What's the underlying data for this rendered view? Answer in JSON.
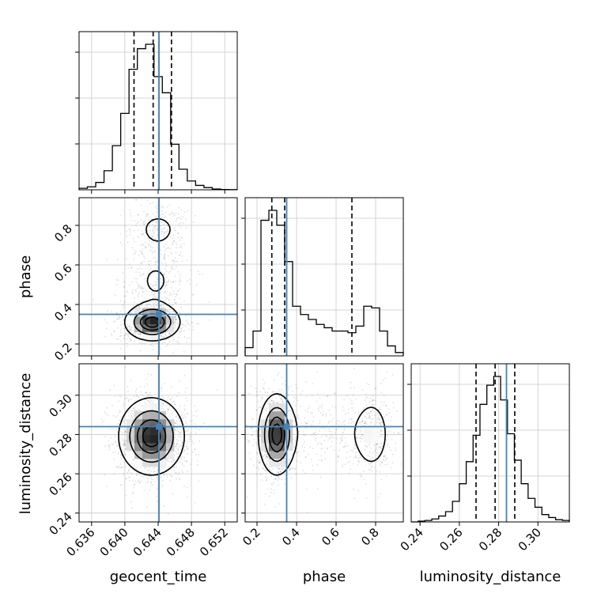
{
  "chart_data": {
    "type": "corner",
    "parameters": [
      "geocent_time",
      "phase",
      "luminosity_distance"
    ],
    "truths": {
      "geocent_time": 0.6441,
      "phase": 0.35,
      "luminosity_distance": 0.284
    },
    "quantiles": {
      "geocent_time": [
        0.6411,
        0.6434,
        0.6456
      ],
      "phase": [
        0.275,
        0.34,
        0.68
      ],
      "luminosity_distance": [
        0.2685,
        0.2782,
        0.2882
      ]
    },
    "axes": {
      "geocent_time": {
        "label": "geocent_time",
        "ticks": [
          0.636,
          0.64,
          0.644,
          0.648,
          0.652
        ],
        "tick_labels": [
          "0.636",
          "0.640",
          "0.644",
          "0.648",
          "0.652"
        ],
        "range": [
          0.6345,
          0.6535
        ]
      },
      "phase": {
        "label": "phase",
        "ticks": [
          0.2,
          0.4,
          0.6,
          0.8
        ],
        "tick_labels": [
          "0.2",
          "0.4",
          "0.6",
          "0.8"
        ],
        "range": [
          0.14,
          0.94
        ]
      },
      "luminosity_distance": {
        "label": "luminosity_distance",
        "ticks": [
          0.24,
          0.26,
          0.28,
          0.3
        ],
        "tick_labels": [
          "0.24",
          "0.26",
          "0.28",
          "0.30"
        ],
        "range": [
          0.2355,
          0.316
        ]
      }
    },
    "histograms": {
      "geocent_time": {
        "edges": [
          0.6345,
          0.6355,
          0.6365,
          0.6375,
          0.6385,
          0.6395,
          0.6405,
          0.6415,
          0.6425,
          0.6435,
          0.6445,
          0.6455,
          0.6465,
          0.6475,
          0.6485,
          0.6495,
          0.6505,
          0.6515,
          0.6525,
          0.6535
        ],
        "counts": [
          0.01,
          0.02,
          0.05,
          0.13,
          0.3,
          0.52,
          0.82,
          0.96,
          0.99,
          0.77,
          0.66,
          0.31,
          0.14,
          0.06,
          0.03,
          0.015,
          0.005,
          0.002,
          0.001
        ]
      },
      "phase": {
        "edges": [
          0.14,
          0.18,
          0.22,
          0.26,
          0.3,
          0.34,
          0.38,
          0.42,
          0.46,
          0.5,
          0.54,
          0.58,
          0.62,
          0.66,
          0.7,
          0.74,
          0.78,
          0.82,
          0.86,
          0.9,
          0.94
        ],
        "counts": [
          0.05,
          0.15,
          0.82,
          0.88,
          0.79,
          0.57,
          0.3,
          0.25,
          0.22,
          0.19,
          0.17,
          0.15,
          0.15,
          0.14,
          0.18,
          0.3,
          0.29,
          0.15,
          0.06,
          0.02
        ]
      },
      "luminosity_distance": {
        "edges": [
          0.2355,
          0.239,
          0.2425,
          0.246,
          0.2495,
          0.253,
          0.2565,
          0.26,
          0.2635,
          0.267,
          0.2705,
          0.274,
          0.2775,
          0.281,
          0.2845,
          0.288,
          0.2915,
          0.295,
          0.2985,
          0.302,
          0.3055,
          0.309,
          0.3125,
          0.316
        ],
        "counts": [
          0.0,
          0.005,
          0.01,
          0.02,
          0.04,
          0.07,
          0.14,
          0.26,
          0.41,
          0.59,
          0.8,
          0.93,
          0.99,
          0.83,
          0.6,
          0.42,
          0.26,
          0.16,
          0.1,
          0.05,
          0.03,
          0.015,
          0.01
        ]
      }
    },
    "joint": {
      "phase_vs_geocent_time": {
        "components": [
          {
            "weight": 0.65,
            "mean": [
              0.6433,
              0.31
            ],
            "sd": [
              0.0016,
              0.045
            ]
          },
          {
            "weight": 0.2,
            "mean": [
              0.6437,
              0.52
            ],
            "sd": [
              0.0018,
              0.09
            ]
          },
          {
            "weight": 0.15,
            "mean": [
              0.644,
              0.78
            ],
            "sd": [
              0.0016,
              0.06
            ]
          }
        ]
      },
      "luminosity_distance_vs_geocent_time": {
        "components": [
          {
            "weight": 1.0,
            "mean": [
              0.6432,
              0.279
            ],
            "sd": [
              0.0019,
              0.0095
            ]
          }
        ]
      },
      "luminosity_distance_vs_phase": {
        "components": [
          {
            "weight": 0.62,
            "mean": [
              0.3,
              0.28
            ],
            "sd": [
              0.045,
              0.01
            ]
          },
          {
            "weight": 0.18,
            "mean": [
              0.55,
              0.281
            ],
            "sd": [
              0.12,
              0.01
            ]
          },
          {
            "weight": 0.2,
            "mean": [
              0.78,
              0.28
            ],
            "sd": [
              0.05,
              0.01
            ]
          }
        ]
      }
    },
    "contour_levels": [
      0.118,
      0.393,
      0.675,
      0.865
    ],
    "grid": true,
    "colors": {
      "truth": "#4682b4",
      "hist": "#000000",
      "density": "#000000",
      "grid": "#c8c8c8"
    }
  }
}
